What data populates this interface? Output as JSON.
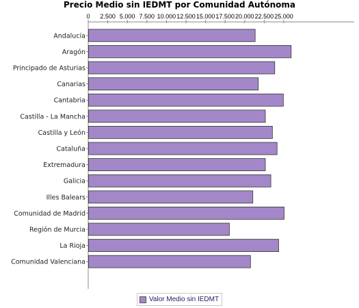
{
  "colors": {
    "bar_fill": "#a487c9",
    "bar_stroke": "#333333",
    "axis": "#888888",
    "background": "#ffffff"
  },
  "chart_data": {
    "type": "bar",
    "orientation": "horizontal",
    "title": "Precio Medio sin IEDMT por Comunidad Autónoma",
    "xlabel": "",
    "ylabel": "",
    "xlim": [
      0,
      27500
    ],
    "xticks": [
      "0",
      "2.500",
      "5.000",
      "7.500",
      "10.000",
      "12.500",
      "15.000",
      "17.500",
      "20.000",
      "22.500",
      "25.000"
    ],
    "xtick_values": [
      0,
      2500,
      5000,
      7500,
      10000,
      12500,
      15000,
      17500,
      20000,
      22500,
      25000
    ],
    "xaxis_position": "top",
    "grid": false,
    "legend_position": "bottom",
    "categories": [
      "Andalucía",
      "Aragón",
      "Principado de Asturias",
      "Canarias",
      "Cantabria",
      "Castilla - La Mancha",
      "Castilla y León",
      "Cataluña",
      "Extremadura",
      "Galicia",
      "Illes Balears",
      "Comunidad de Madrid",
      "Región de Murcia",
      "La Rioja",
      "Comunidad Valenciana"
    ],
    "series": [
      {
        "name": "Valor Medio sin IEDMT",
        "values": [
          21300,
          25900,
          23800,
          21700,
          24900,
          22600,
          23500,
          24100,
          22600,
          23300,
          21000,
          25000,
          18000,
          24300,
          20700
        ]
      }
    ]
  }
}
